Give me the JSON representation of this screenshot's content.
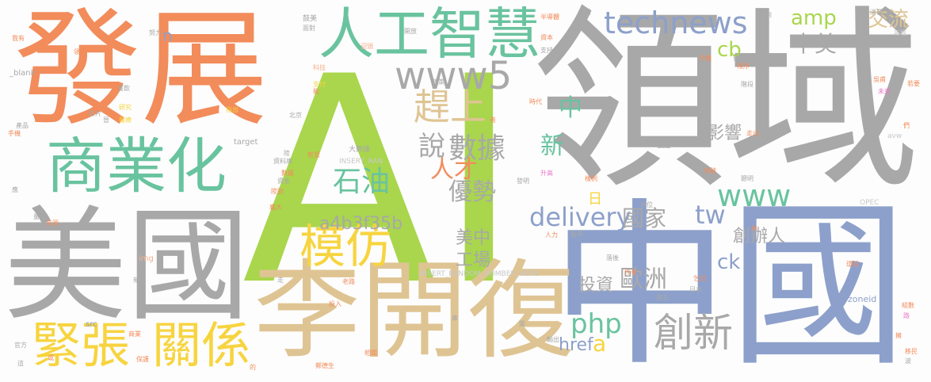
{
  "palette": {
    "gray": "#a8a8a8",
    "orange": "#f28c5b",
    "green": "#a9d64d",
    "teal": "#69c39f",
    "sand": "#dfc493",
    "blue": "#8da0cb",
    "pink": "#e67ac7",
    "yellow": "#f7d43f",
    "light_gray": "#c8c8c8",
    "light_orange": "#f5b08f"
  },
  "words": [
    {
      "text": "AI",
      "color": "green"
    },
    {
      "text": "領域",
      "color": "gray"
    },
    {
      "text": "發展",
      "color": "orange"
    },
    {
      "text": "中國",
      "color": "blue"
    },
    {
      "text": "美國",
      "color": "gray"
    },
    {
      "text": "李開復",
      "color": "sand"
    },
    {
      "text": "人工智慧",
      "color": "teal"
    },
    {
      "text": "商業化",
      "color": "teal"
    },
    {
      "text": "www5",
      "color": "gray"
    },
    {
      "text": "technews",
      "color": "blue"
    },
    {
      "text": "趕上",
      "color": "sand"
    },
    {
      "text": "模仿",
      "color": "yellow"
    },
    {
      "text": "緊張",
      "color": "yellow"
    },
    {
      "text": "關係",
      "color": "yellow"
    },
    {
      "text": "創新",
      "color": "gray"
    },
    {
      "text": "www",
      "color": "teal"
    },
    {
      "text": "delivery",
      "color": "blue"
    },
    {
      "text": "數據",
      "color": "gray"
    },
    {
      "text": "石油",
      "color": "teal"
    },
    {
      "text": "優勢",
      "color": "gray"
    },
    {
      "text": "人才",
      "color": "orange"
    },
    {
      "text": "a4b3f35b",
      "color": "gray"
    },
    {
      "text": "amp",
      "color": "green"
    },
    {
      "text": "cb",
      "color": "green"
    },
    {
      "text": "中美",
      "color": "gray"
    },
    {
      "text": "交流",
      "color": "sand"
    },
    {
      "text": "tw",
      "color": "blue"
    },
    {
      "text": "國家",
      "color": "gray"
    },
    {
      "text": "php",
      "color": "teal"
    },
    {
      "text": "歐洲",
      "color": "gray"
    },
    {
      "text": "投資",
      "color": "gray"
    },
    {
      "text": "創辦人",
      "color": "gray"
    },
    {
      "text": "說",
      "color": "gray"
    },
    {
      "text": "中",
      "color": "teal"
    },
    {
      "text": "新",
      "color": "teal"
    },
    {
      "text": "影響",
      "color": "gray"
    },
    {
      "text": "ck",
      "color": "blue"
    },
    {
      "text": "工場",
      "color": "gray"
    },
    {
      "text": "美中",
      "color": "gray"
    },
    {
      "text": "href",
      "color": "blue"
    },
    {
      "text": "a",
      "color": "yellow"
    },
    {
      "text": "日",
      "color": "yellow"
    },
    {
      "text": "n",
      "color": "blue"
    },
    {
      "text": "INSERT_RANDOM_NUMBER_HERE",
      "color": "light_gray"
    },
    {
      "text": "INSERT_RAN",
      "color": "light_gray"
    },
    {
      "text": "大數據",
      "color": "gray"
    },
    {
      "text": "target",
      "color": "gray"
    },
    {
      "text": "_blank'",
      "color": "gray"
    },
    {
      "text": "zoneid",
      "color": "blue"
    },
    {
      "text": "OPEC",
      "color": "light_gray"
    },
    {
      "text": "avw",
      "color": "light_gray"
    },
    {
      "text": "img",
      "color": "light_orange"
    },
    {
      "text": "src",
      "color": "blue"
    },
    {
      "text": "鼓美",
      "color": "gray"
    },
    {
      "text": "面對",
      "color": "gray"
    },
    {
      "text": "開放",
      "color": "gray"
    },
    {
      "text": "迎頭",
      "color": "light_orange"
    },
    {
      "text": "科技",
      "color": "light_orange"
    },
    {
      "text": "支付",
      "color": "yellow"
    },
    {
      "text": "政策",
      "color": "gray"
    },
    {
      "text": "半導體",
      "color": "orange"
    },
    {
      "text": "資本",
      "color": "orange"
    },
    {
      "text": "支持",
      "color": "gray"
    },
    {
      "text": "方向",
      "color": "gray"
    },
    {
      "text": "消長",
      "color": "gray"
    },
    {
      "text": "年輕",
      "color": "light_gray"
    },
    {
      "text": "天機",
      "color": "orange"
    },
    {
      "text": "留下",
      "color": "gray"
    },
    {
      "text": "階段",
      "color": "gray"
    },
    {
      "text": "未來",
      "color": "pink"
    },
    {
      "text": "時代",
      "color": "orange"
    },
    {
      "text": "足夠",
      "color": "gray"
    },
    {
      "text": "吳甫",
      "color": "orange"
    },
    {
      "text": "若要",
      "color": "orange"
    },
    {
      "text": "走出",
      "color": "orange"
    },
    {
      "text": "脫離",
      "color": "gray"
    },
    {
      "text": "突破",
      "color": "orange"
    },
    {
      "text": "聰明",
      "color": "gray"
    },
    {
      "text": "升高",
      "color": "pink"
    },
    {
      "text": "發明",
      "color": "gray"
    },
    {
      "text": "智慧",
      "color": "orange"
    },
    {
      "text": "資料庫",
      "color": "gray"
    },
    {
      "text": "資金",
      "color": "gray"
    },
    {
      "text": "陸勁",
      "color": "orange"
    },
    {
      "text": "指出",
      "color": "yellow"
    },
    {
      "text": "北京",
      "color": "gray"
    },
    {
      "text": "研究",
      "color": "yellow"
    },
    {
      "text": "產品",
      "color": "gray"
    },
    {
      "text": "影片",
      "color": "gray"
    },
    {
      "text": "手機",
      "color": "orange"
    },
    {
      "text": "醫療",
      "color": "yellow"
    },
    {
      "text": "餐飲",
      "color": "gray"
    },
    {
      "text": "領先",
      "color": "orange"
    },
    {
      "text": "我有",
      "color": "orange"
    },
    {
      "text": "努力",
      "color": "gray"
    },
    {
      "text": "地位",
      "color": "gray"
    },
    {
      "text": "人力",
      "color": "orange"
    },
    {
      "text": "最新",
      "color": "gray"
    },
    {
      "text": "落後",
      "color": "gray"
    },
    {
      "text": "作者",
      "color": "orange"
    },
    {
      "text": "乞討",
      "color": "orange"
    },
    {
      "text": "日本",
      "color": "gray"
    },
    {
      "text": "自主",
      "color": "gray"
    },
    {
      "text": "來源",
      "color": "orange"
    },
    {
      "text": "新聞",
      "color": "gray"
    },
    {
      "text": "官方",
      "color": "gray"
    },
    {
      "text": "商業",
      "color": "orange"
    },
    {
      "text": "保護",
      "color": "orange"
    },
    {
      "text": "鄭德生",
      "color": "orange"
    },
    {
      "text": "相關",
      "color": "orange"
    },
    {
      "text": "老路",
      "color": "orange"
    },
    {
      "text": "投入",
      "color": "orange"
    },
    {
      "text": "輸出",
      "color": "gray"
    },
    {
      "text": "組數",
      "color": "orange"
    },
    {
      "text": "移民",
      "color": "orange"
    },
    {
      "text": "據說",
      "color": "gray"
    },
    {
      "text": "路",
      "color": "pink"
    },
    {
      "text": "變",
      "color": "gray"
    },
    {
      "text": "庫",
      "color": "gray"
    },
    {
      "text": "年",
      "color": "orange"
    },
    {
      "text": "量",
      "color": "gray"
    },
    {
      "text": "應",
      "color": "gray"
    },
    {
      "text": "走",
      "color": "gray"
    },
    {
      "text": "的",
      "color": "orange"
    },
    {
      "text": "這",
      "color": "gray"
    },
    {
      "text": "或",
      "color": "orange"
    },
    {
      "text": "陸",
      "color": "gray"
    },
    {
      "text": "者",
      "color": "orange"
    },
    {
      "text": "晉",
      "color": "gray"
    },
    {
      "text": "能",
      "color": "orange"
    },
    {
      "text": "波",
      "color": "gray"
    },
    {
      "text": "冊",
      "color": "gray"
    },
    {
      "text": "們",
      "color": "orange"
    },
    {
      "text": "擁",
      "color": "orange"
    },
    {
      "text": "龐大",
      "color": "orange"
    },
    {
      "text": "樣例",
      "color": "orange"
    },
    {
      "text": "程序",
      "color": "orange"
    },
    {
      "text": "環境",
      "color": "orange"
    },
    {
      "text": "數據",
      "color": "orange"
    }
  ]
}
